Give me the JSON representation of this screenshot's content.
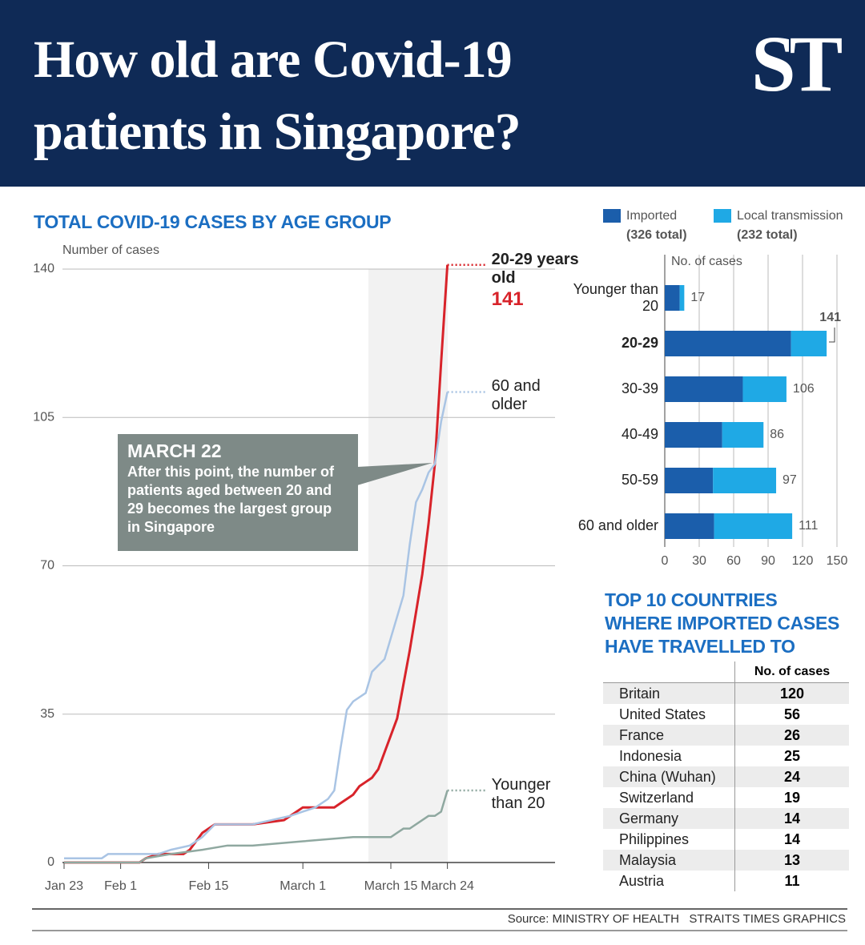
{
  "header": {
    "title": "How old are Covid-19 patients in Singapore?",
    "logo": "ST"
  },
  "chart_data": [
    {
      "type": "line",
      "title": "TOTAL COVID-19 CASES BY AGE GROUP",
      "y_label": "Number of cases",
      "xlim": [
        0,
        78
      ],
      "xticks": [
        {
          "value": 0,
          "label": "Jan 23"
        },
        {
          "value": 9,
          "label": "Feb 1"
        },
        {
          "value": 23,
          "label": "Feb 15"
        },
        {
          "value": 38,
          "label": "March 1"
        },
        {
          "value": 52,
          "label": "March 15"
        },
        {
          "value": 61,
          "label": "March 24"
        }
      ],
      "ylim": [
        0,
        140
      ],
      "yticks": [
        0,
        35,
        70,
        105,
        140
      ],
      "grid": true,
      "annotation": {
        "title": "MARCH 22",
        "text": "After this point, the number of patients aged between 20 and 29 becomes the largest group in Singapore"
      },
      "series": [
        {
          "name": "20-29 years old",
          "color": "#d8232a",
          "show_end_value": true,
          "x": [
            0,
            12,
            13,
            15,
            17,
            19,
            20,
            21,
            22,
            23,
            24,
            30,
            35,
            37,
            38,
            43,
            44,
            45,
            46,
            47,
            48,
            49,
            50,
            51,
            52,
            53,
            54,
            55,
            56,
            57,
            58,
            59,
            60,
            61
          ],
          "values": [
            0,
            0,
            1,
            2,
            2,
            2,
            3,
            5,
            7,
            8,
            9,
            9,
            10,
            12,
            13,
            13,
            14,
            15,
            16,
            18,
            19,
            20,
            22,
            26,
            30,
            34,
            42,
            50,
            59,
            68,
            80,
            94,
            118,
            141
          ]
        },
        {
          "name": "60 and older",
          "color": "#a9c4e4",
          "show_end_value": false,
          "x": [
            0,
            6,
            7,
            15,
            17,
            20,
            22,
            24,
            30,
            33,
            36,
            38,
            40,
            42,
            43,
            44,
            45,
            46,
            48,
            49,
            51,
            52,
            53,
            54,
            55,
            56,
            57,
            58,
            59,
            60,
            61
          ],
          "values": [
            1,
            1,
            2,
            2,
            3,
            4,
            6,
            9,
            9,
            10,
            11,
            12,
            13,
            15,
            17,
            27,
            36,
            38,
            40,
            45,
            48,
            53,
            58,
            63,
            75,
            85,
            88,
            92,
            94,
            104,
            111
          ]
        },
        {
          "name": "Younger than 20",
          "color": "#8fa8a0",
          "show_end_value": false,
          "x": [
            0,
            12,
            13,
            17,
            22,
            26,
            30,
            38,
            46,
            52,
            53,
            54,
            55,
            57,
            58,
            59,
            60,
            61
          ],
          "values": [
            0,
            0,
            1,
            2,
            3,
            4,
            4,
            5,
            6,
            6,
            7,
            8,
            8,
            10,
            11,
            11,
            12,
            17
          ]
        }
      ]
    },
    {
      "type": "bar",
      "orientation": "horizontal",
      "stacked": true,
      "axis_label": "No. of cases",
      "categories": [
        "Younger than 20",
        "20-29",
        "30-39",
        "40-49",
        "50-59",
        "60 and older"
      ],
      "series": [
        {
          "name": "Imported",
          "total_label": "(326 total)",
          "color": "#1b5eab",
          "values": [
            13,
            110,
            68,
            50,
            42,
            43
          ]
        },
        {
          "name": "Local transmission",
          "total_label": "(232 total)",
          "color": "#1fa9e5",
          "values": [
            4,
            31,
            38,
            36,
            55,
            68
          ]
        }
      ],
      "totals": [
        17,
        141,
        106,
        86,
        97,
        111
      ],
      "highlight_index": 1,
      "xlim": [
        0,
        150
      ],
      "xticks": [
        0,
        30,
        60,
        90,
        120,
        150
      ],
      "grid": true
    }
  ],
  "table": {
    "title": "TOP 10 COUNTRIES WHERE IMPORTED CASES HAVE TRAVELLED TO",
    "value_header": "No. of cases",
    "rows": [
      [
        "Britain",
        120
      ],
      [
        "United States",
        56
      ],
      [
        "France",
        26
      ],
      [
        "Indonesia",
        25
      ],
      [
        "China (Wuhan)",
        24
      ],
      [
        "Switzerland",
        19
      ],
      [
        "Germany",
        14
      ],
      [
        "Philippines",
        14
      ],
      [
        "Malaysia",
        13
      ],
      [
        "Austria",
        11
      ]
    ]
  },
  "source": "Source: MINISTRY OF HEALTH   STRAITS TIMES GRAPHICS"
}
